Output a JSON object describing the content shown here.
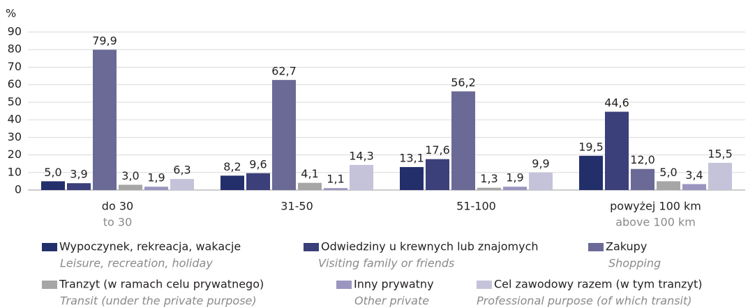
{
  "chart_data": {
    "type": "bar",
    "y_unit": "%",
    "categories": [
      "do 30",
      "31-50",
      "51-100",
      "powyżej 100 km"
    ],
    "categories_en": [
      "to 30",
      null,
      null,
      "above 100 km"
    ],
    "ylim": [
      0,
      90
    ],
    "yticks": [
      0,
      10,
      20,
      30,
      40,
      50,
      60,
      70,
      80,
      90
    ],
    "grid": true,
    "series": [
      {
        "name": "Wypoczynek, rekreacja, wakacje",
        "name_en": "Leisure, recreation, holiday",
        "color": "#232f6b",
        "values": [
          5.0,
          8.2,
          13.1,
          19.5
        ],
        "value_labels": [
          "5,0",
          "8,2",
          "13,1",
          "19,5"
        ]
      },
      {
        "name": "Odwiedziny u krewnych lub znajomych",
        "name_en": "Visiting family or friends",
        "color": "#3b3f7a",
        "values": [
          3.9,
          9.6,
          17.6,
          44.6
        ],
        "value_labels": [
          "3,9",
          "9,6",
          "17,6",
          "44,6"
        ]
      },
      {
        "name": "Zakupy",
        "name_en": "Shopping",
        "color": "#6b6a96",
        "values": [
          79.9,
          62.7,
          56.2,
          12.0
        ],
        "value_labels": [
          "79,9",
          "62,7",
          "56,2",
          "12,0"
        ]
      },
      {
        "name": "Tranzyt (w ramach celu prywatnego)",
        "name_en": "Transit (under the private purpose)",
        "color": "#a6a6a6",
        "values": [
          3.0,
          4.1,
          1.3,
          5.0
        ],
        "value_labels": [
          "3,0",
          "4,1",
          "1,3",
          "5,0"
        ]
      },
      {
        "name": "Inny prywatny",
        "name_en": "Other private",
        "color": "#9a96c0",
        "values": [
          1.9,
          1.1,
          1.9,
          3.4
        ],
        "value_labels": [
          "1,9",
          "1,1",
          "1,9",
          "3,4"
        ]
      },
      {
        "name": "Cel zawodowy razem (w tym tranzyt)",
        "name_en": "Professional purpose (of which transit)",
        "color": "#c4c3da",
        "values": [
          6.3,
          14.3,
          9.9,
          15.5
        ],
        "value_labels": [
          "6,3",
          "14,3",
          "9,9",
          "15,5"
        ]
      }
    ]
  }
}
